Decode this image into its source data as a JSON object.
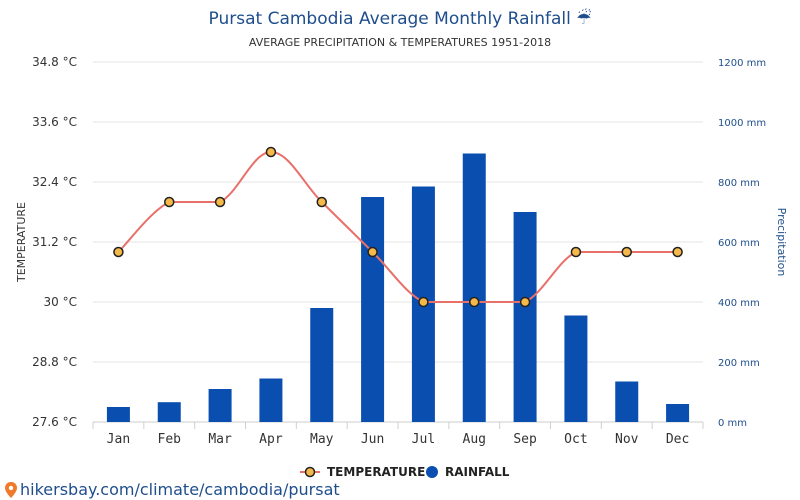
{
  "chart_data": {
    "type": "bar",
    "title": "Pursat Cambodia Average Monthly Rainfall ☔",
    "subtitle": "AVERAGE PRECIPITATION & TEMPERATURES 1951-2018",
    "categories": [
      "Jan",
      "Feb",
      "Mar",
      "Apr",
      "May",
      "Jun",
      "Jul",
      "Aug",
      "Sep",
      "Oct",
      "Nov",
      "Dec"
    ],
    "series": [
      {
        "name": "RAINFALL",
        "type": "bar",
        "axis": "right",
        "color": "#0a4fb0",
        "values": [
          50,
          66,
          110,
          145,
          380,
          750,
          785,
          895,
          700,
          355,
          135,
          60
        ]
      },
      {
        "name": "TEMPERATURE",
        "type": "line",
        "axis": "left",
        "color": "#e8706a",
        "marker_fill": "#f5b94a",
        "values": [
          31,
          32,
          32,
          33,
          32,
          31,
          30,
          30,
          30,
          31,
          31,
          31
        ]
      }
    ],
    "y_left": {
      "label": "TEMPERATURE",
      "min": 27.6,
      "max": 34.8,
      "ticks": [
        27.6,
        28.8,
        30,
        31.2,
        32.4,
        33.6,
        34.8
      ],
      "tick_labels": [
        "27.6 °C",
        "28.8 °C",
        "30 °C",
        "31.2 °C",
        "32.4 °C",
        "33.6 °C",
        "34.8 °C"
      ]
    },
    "y_right": {
      "label": "Precipitation",
      "min": 0,
      "max": 1200,
      "ticks": [
        0,
        200,
        400,
        600,
        800,
        1000,
        1200
      ],
      "tick_labels": [
        "0 mm",
        "200 mm",
        "400 mm",
        "600 mm",
        "800 mm",
        "1000 mm",
        "1200 mm"
      ]
    },
    "grid": true,
    "legend_position": "bottom",
    "legend": [
      "TEMPERATURE",
      "RAINFALL"
    ]
  },
  "footer": {
    "url": "hikersbay.com/climate/cambodia/pursat",
    "icon": "map-pin-icon"
  }
}
